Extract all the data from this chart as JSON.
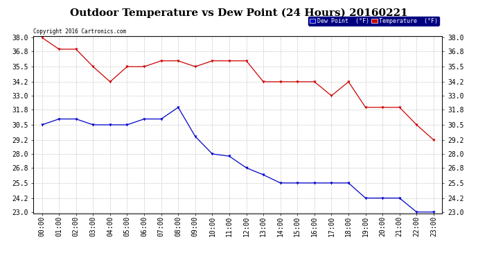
{
  "title": "Outdoor Temperature vs Dew Point (24 Hours) 20160221",
  "copyright_text": "Copyright 2016 Cartronics.com",
  "x_labels": [
    "00:00",
    "01:00",
    "02:00",
    "03:00",
    "04:00",
    "05:00",
    "06:00",
    "07:00",
    "08:00",
    "09:00",
    "10:00",
    "11:00",
    "12:00",
    "13:00",
    "14:00",
    "15:00",
    "16:00",
    "17:00",
    "18:00",
    "19:00",
    "20:00",
    "21:00",
    "22:00",
    "23:00"
  ],
  "temperature": [
    38.0,
    37.0,
    37.0,
    35.5,
    34.2,
    35.5,
    35.5,
    36.0,
    36.0,
    35.5,
    36.0,
    36.0,
    36.0,
    34.2,
    34.2,
    34.2,
    34.2,
    33.0,
    34.2,
    32.0,
    32.0,
    32.0,
    30.5,
    29.2
  ],
  "dew_point": [
    30.5,
    31.0,
    31.0,
    30.5,
    30.5,
    30.5,
    31.0,
    31.0,
    32.0,
    29.5,
    28.0,
    27.8,
    26.8,
    26.2,
    25.5,
    25.5,
    25.5,
    25.5,
    25.5,
    24.2,
    24.2,
    24.2,
    23.0,
    23.0
  ],
  "temp_color": "#cc0000",
  "dew_color": "#0000cc",
  "ylim_min": 23.0,
  "ylim_max": 38.0,
  "yticks": [
    23.0,
    24.2,
    25.5,
    26.8,
    28.0,
    29.2,
    30.5,
    31.8,
    33.0,
    34.2,
    35.5,
    36.8,
    38.0
  ],
  "background_color": "#ffffff",
  "grid_color": "#c8c8c8",
  "title_fontsize": 11,
  "axis_fontsize": 7,
  "legend_dew_label": "Dew Point  (°F)",
  "legend_temp_label": "Temperature  (°F)",
  "fig_width": 6.9,
  "fig_height": 3.75,
  "fig_dpi": 100
}
